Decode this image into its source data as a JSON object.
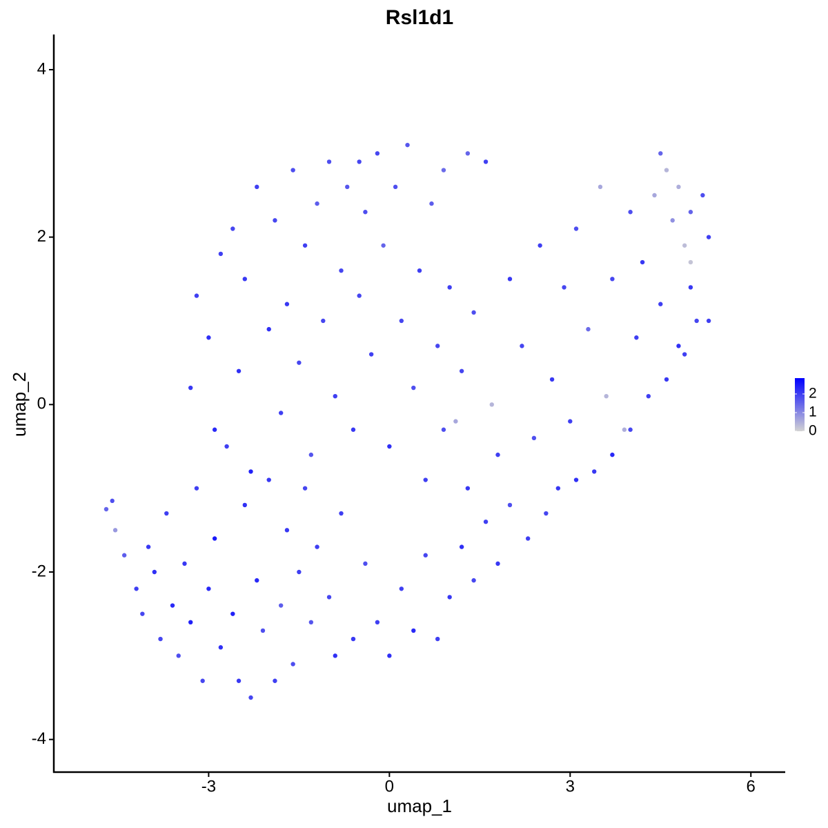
{
  "chart_data": {
    "type": "scatter",
    "title": "Rsl1d1",
    "x_label": "umap_1",
    "y_label": "umap_2",
    "xlim": [
      -5.57,
      6.57
    ],
    "ylim": [
      -4.39,
      4.42
    ],
    "xticks": [
      -3,
      0,
      3,
      6
    ],
    "yticks": [
      -4,
      -2,
      0,
      2,
      4
    ],
    "colorbar": {
      "lim": [
        0,
        2.85
      ],
      "ticks": [
        0,
        1,
        2
      ],
      "colors": [
        "#d3d3d3",
        "#0000ff"
      ]
    },
    "x": [
      -4.7,
      -4.6,
      -4.55,
      -4.4,
      -4.2,
      -4.1,
      -4.0,
      -3.9,
      -3.8,
      -3.7,
      -3.6,
      -3.5,
      -3.4,
      -3.3,
      -3.2,
      -3.1,
      -3.0,
      -2.9,
      -2.8,
      -2.7,
      -2.6,
      -2.5,
      -2.4,
      -2.3,
      -2.2,
      -2.1,
      -2.0,
      -1.9,
      -1.8,
      -1.7,
      -1.6,
      -1.5,
      -1.4,
      -1.3,
      -1.2,
      -1.0,
      -0.9,
      -0.8,
      -0.6,
      -0.4,
      -0.2,
      0,
      0.2,
      0.4,
      0.6,
      0.8,
      1.0,
      1.2,
      1.4,
      1.6,
      1.8,
      2.0,
      2.3,
      2.6,
      2.8,
      3.1,
      3.4,
      3.7,
      4.0,
      4.3,
      4.6,
      4.9,
      5.1,
      5.3,
      -3.3,
      -3.2,
      -3.0,
      -2.9,
      -2.8,
      -2.6,
      -2.5,
      -2.4,
      -2.3,
      -2.2,
      -2.0,
      -1.9,
      -1.8,
      -1.7,
      -1.6,
      -1.5,
      -1.4,
      -1.3,
      -1.2,
      -1.1,
      -1.0,
      -0.9,
      -0.8,
      -0.7,
      -0.6,
      -0.5,
      -0.4,
      -0.3,
      -0.2,
      -0.1,
      0,
      0.1,
      0.2,
      0.3,
      0.4,
      0.5,
      0.6,
      0.7,
      0.8,
      0.9,
      1.0,
      1.1,
      1.2,
      1.3,
      1.4,
      1.6,
      1.7,
      1.8,
      2.0,
      2.2,
      2.4,
      2.5,
      2.7,
      2.9,
      3.0,
      3.1,
      3.3,
      3.5,
      3.6,
      3.7,
      3.9,
      4.0,
      4.1,
      4.2,
      4.4,
      4.5,
      4.6,
      4.7,
      4.8,
      4.9,
      5.0,
      5.0,
      5.2,
      5.3,
      5.0,
      4.8,
      4.5,
      1.3,
      0.9,
      -0.5
    ],
    "values": [
      -1.25,
      -1.15,
      -1.5,
      -1.8,
      -2.2,
      -2.5,
      -1.7,
      -2.0,
      -2.8,
      -1.3,
      -2.4,
      -3.0,
      -1.9,
      -2.6,
      -1.0,
      -3.3,
      -2.2,
      -1.6,
      -2.9,
      -0.5,
      -2.5,
      -3.3,
      -1.2,
      -3.5,
      -2.1,
      -2.7,
      -0.9,
      -3.3,
      -2.4,
      -1.5,
      -3.1,
      -2.0,
      -1.0,
      -2.6,
      -1.7,
      -2.3,
      -3.0,
      -1.3,
      -2.8,
      -1.9,
      -2.6,
      -3.0,
      -2.2,
      -2.7,
      -1.8,
      -2.8,
      -2.3,
      -1.7,
      -2.1,
      -1.4,
      -1.9,
      -1.2,
      -1.6,
      -1.3,
      -1.0,
      -0.9,
      -0.8,
      -0.6,
      -0.3,
      0.1,
      0.3,
      0.6,
      1.0,
      1.0,
      0.2,
      1.3,
      0.8,
      -0.3,
      1.8,
      2.1,
      0.4,
      1.5,
      -0.8,
      2.6,
      0.9,
      2.2,
      -0.1,
      1.2,
      2.8,
      0.5,
      1.9,
      -0.6,
      2.4,
      1.0,
      2.9,
      0.1,
      1.6,
      2.6,
      -0.3,
      1.3,
      2.3,
      0.6,
      3.0,
      1.9,
      -0.5,
      2.6,
      1.0,
      3.1,
      0.2,
      1.6,
      -0.9,
      2.4,
      0.7,
      -0.3,
      1.4,
      -0.2,
      0.4,
      -1.0,
      1.1,
      2.9,
      0.0,
      -0.6,
      1.5,
      0.7,
      -0.4,
      1.9,
      0.3,
      1.4,
      -0.2,
      2.1,
      0.9,
      2.6,
      0.1,
      1.5,
      -0.3,
      2.3,
      0.8,
      1.7,
      2.5,
      3.0,
      2.8,
      2.2,
      2.6,
      1.9,
      2.3,
      1.7,
      2.5,
      2.0,
      1.4,
      0.7,
      1.2,
      3.0,
      2.8,
      2.9
    ],
    "expression": [
      1.5,
      1.8,
      0.8,
      1.6,
      2,
      1.9,
      2.1,
      2.2,
      1.9,
      2,
      2.3,
      1.8,
      2.1,
      2.4,
      2,
      1.9,
      2.3,
      2.5,
      2.2,
      2,
      2.4,
      2.1,
      2.2,
      1.9,
      2.3,
      1.8,
      2.1,
      2,
      1.6,
      2.1,
      1.8,
      2,
      1.9,
      1.7,
      2,
      1.9,
      2.2,
      2,
      2.1,
      1.8,
      2,
      2.2,
      2,
      2.3,
      1.9,
      2,
      2.1,
      2.2,
      1.9,
      2,
      2.1,
      1.8,
      2,
      1.9,
      2.1,
      2.2,
      2.1,
      2.3,
      1.9,
      2,
      2.1,
      2,
      1.9,
      2,
      2.1,
      2,
      2.2,
      2.3,
      2,
      1.9,
      2.2,
      2.1,
      2.4,
      2,
      2.2,
      1.9,
      2,
      2.1,
      1.8,
      1.9,
      2,
      1.7,
      1.6,
      1.9,
      1.8,
      2,
      1.9,
      1.7,
      2.1,
      1.9,
      1.8,
      2,
      1.9,
      1.5,
      2.2,
      1.8,
      1.9,
      1.7,
      1.8,
      2,
      2,
      1.6,
      1.9,
      1.8,
      2,
      0.6,
      1.9,
      2.1,
      1.8,
      2,
      0.4,
      2,
      2.1,
      1.9,
      1.8,
      2,
      2.1,
      1.9,
      2,
      1.8,
      1.4,
      0.6,
      0.4,
      1.9,
      0.5,
      1.8,
      2,
      2.1,
      0.6,
      1.5,
      0.4,
      0.9,
      0.5,
      0.3,
      1.5,
      0.2,
      1.8,
      2,
      2.1,
      2.2,
      2,
      1.5,
      1.4,
      1.9
    ]
  }
}
